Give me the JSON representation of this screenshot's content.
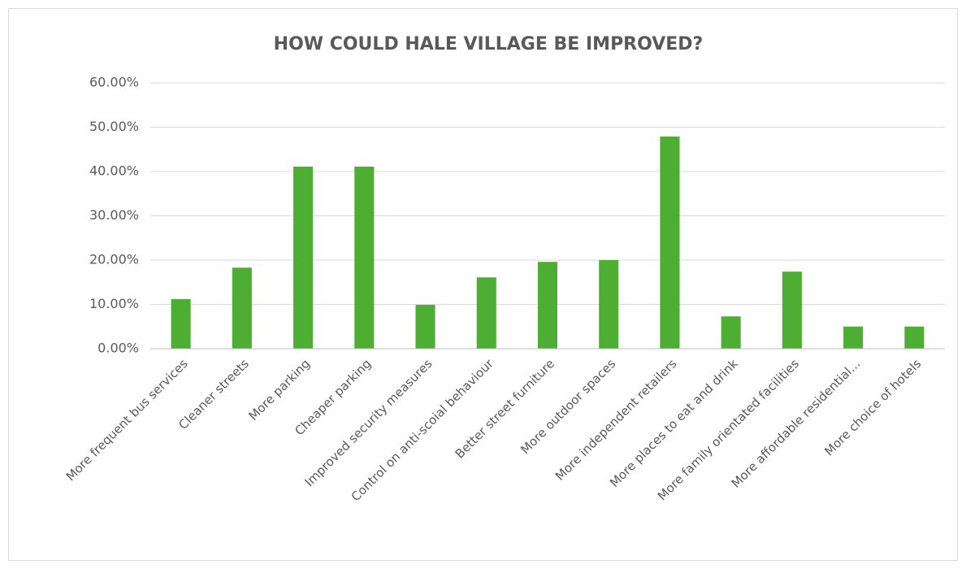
{
  "chart_data": {
    "type": "bar",
    "title": "HOW COULD HALE VILLAGE BE IMPROVED?",
    "categories": [
      "More frequent bus services",
      "Cleaner streets",
      "More parking",
      "Cheaper parking",
      "Improved security measures",
      "Control on anti-scoial behaviour",
      "Better street furniture",
      "More outdoor spaces",
      "More independent retailers",
      "More places to eat and drink",
      "More family orientated facilities",
      "More affordable residential...",
      "More choice of hotels"
    ],
    "values": [
      11.2,
      18.3,
      41.1,
      41.1,
      9.9,
      16.1,
      19.6,
      20.0,
      47.9,
      7.3,
      17.4,
      5.0,
      5.0
    ],
    "color": "#4eae33",
    "ylim": [
      0,
      60
    ],
    "yticks": [
      {
        "value": 0,
        "label": "0.00%"
      },
      {
        "value": 10,
        "label": "10.00%"
      },
      {
        "value": 20,
        "label": "20.00%"
      },
      {
        "value": 30,
        "label": "30.00%"
      },
      {
        "value": 40,
        "label": "40.00%"
      },
      {
        "value": 50,
        "label": "50.00%"
      },
      {
        "value": 60,
        "label": "60.00%"
      }
    ],
    "grid": true
  }
}
